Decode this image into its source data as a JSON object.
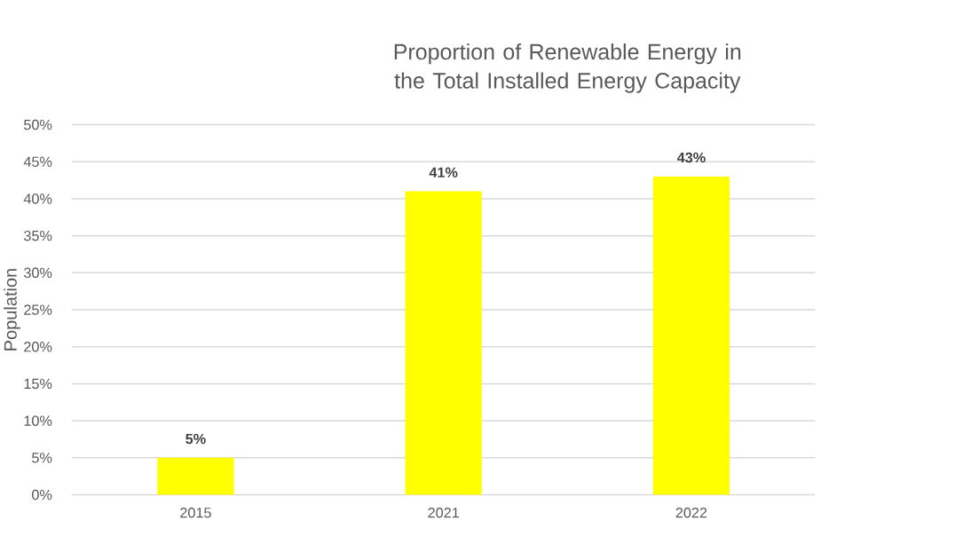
{
  "chart_data": {
    "type": "bar",
    "title": "Proportion of Renewable Energy in the Total Installed Energy Capacity",
    "ylabel": "Population",
    "categories": [
      "2015",
      "2021",
      "2022"
    ],
    "values": [
      5,
      41,
      43
    ],
    "value_labels": [
      "5%",
      "41%",
      "43%"
    ],
    "color": "#ffff00",
    "ylim": [
      0,
      50
    ],
    "yticks": [
      {
        "value": 0,
        "label": "0%"
      },
      {
        "value": 5,
        "label": "5%"
      },
      {
        "value": 10,
        "label": "10%"
      },
      {
        "value": 15,
        "label": "15%"
      },
      {
        "value": 20,
        "label": "20%"
      },
      {
        "value": 25,
        "label": "25%"
      },
      {
        "value": 30,
        "label": "30%"
      },
      {
        "value": 35,
        "label": "35%"
      },
      {
        "value": 40,
        "label": "40%"
      },
      {
        "value": 45,
        "label": "45%"
      },
      {
        "value": 50,
        "label": "50%"
      }
    ],
    "grid": "y"
  }
}
